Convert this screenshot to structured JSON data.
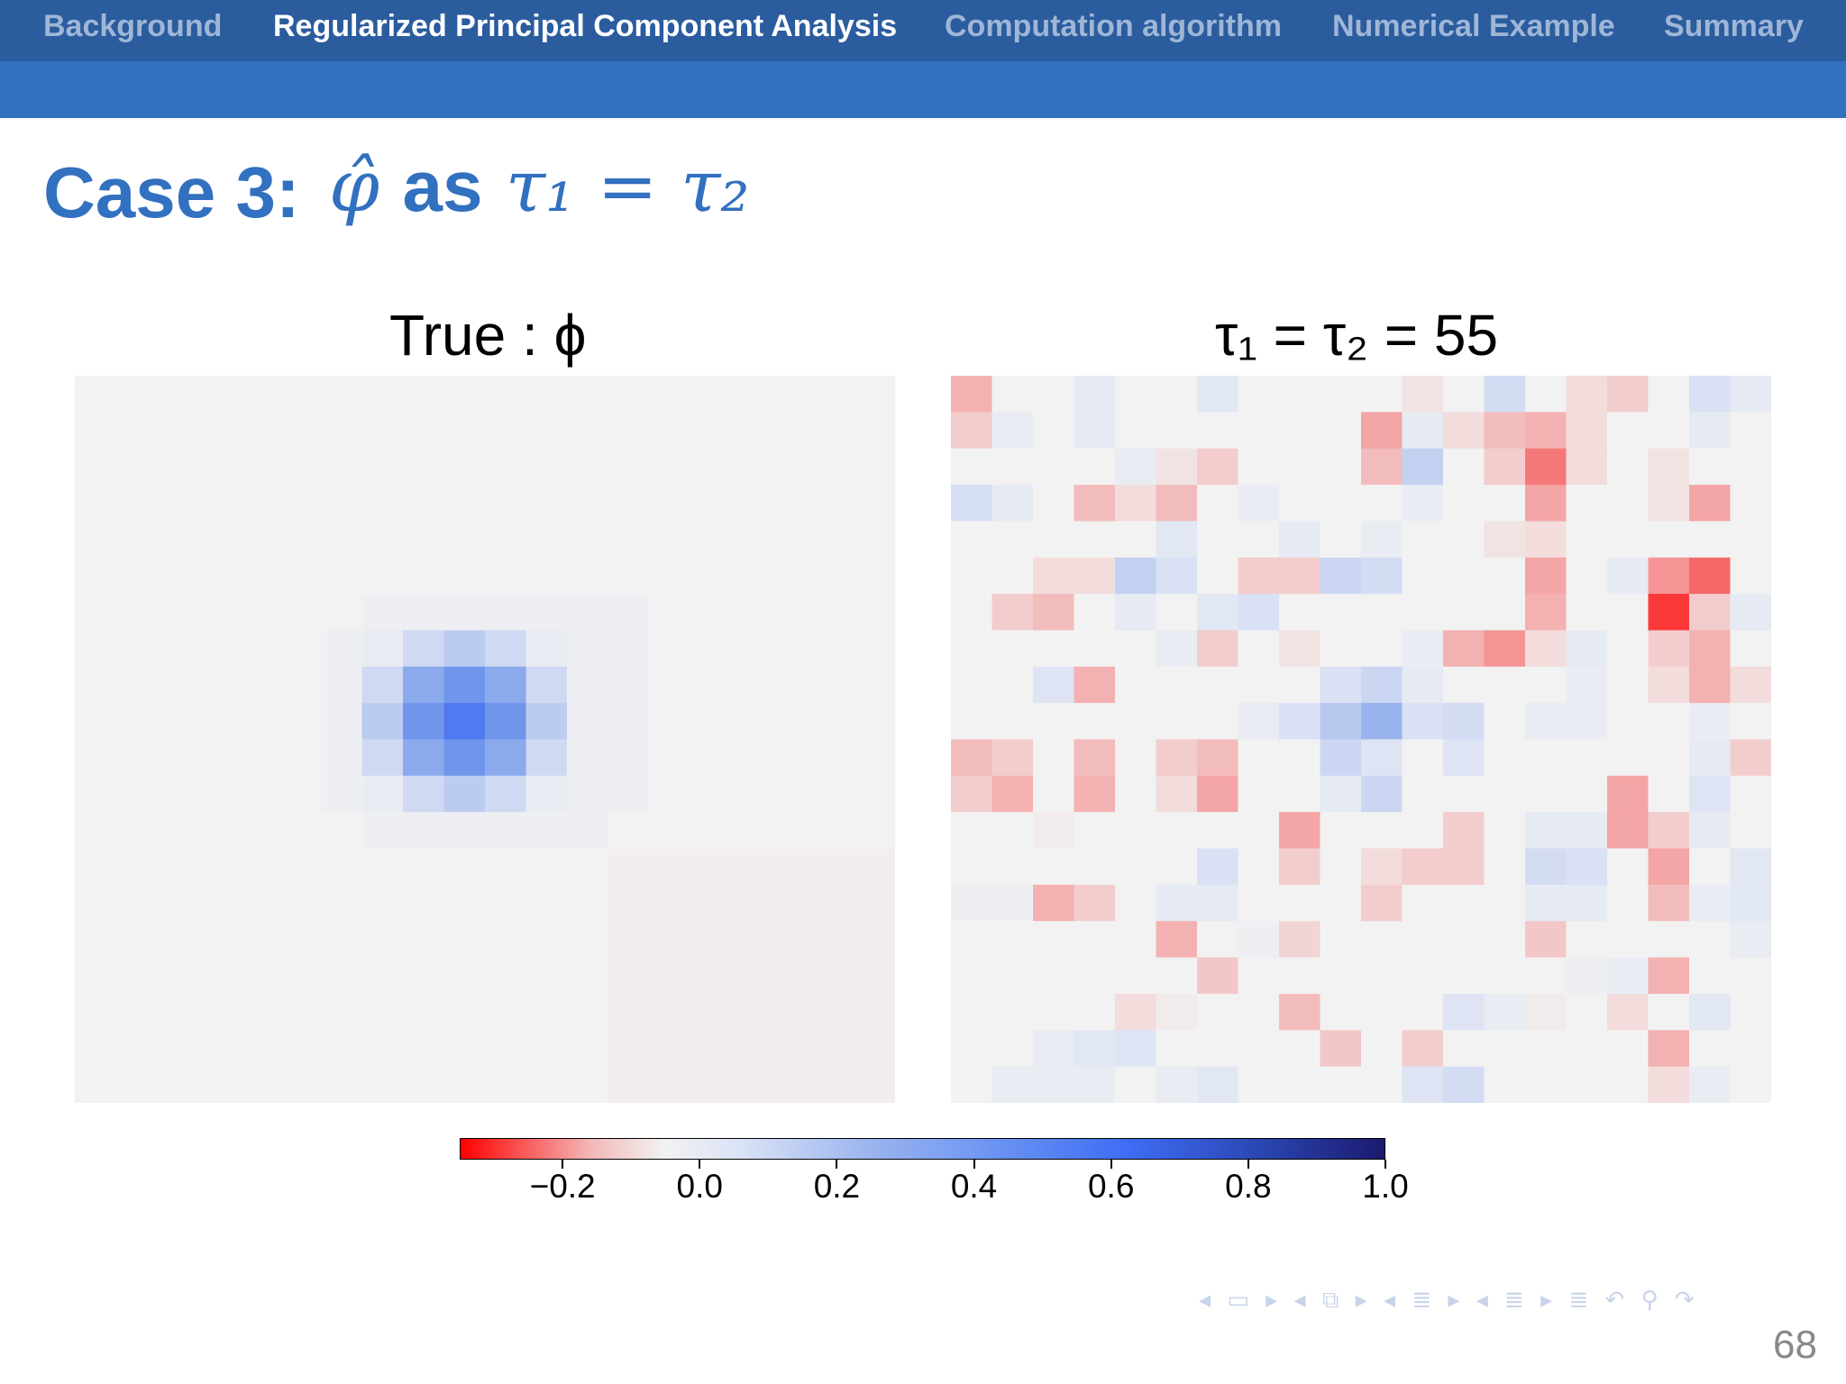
{
  "nav": {
    "items": [
      {
        "label": "Background",
        "active": false
      },
      {
        "label": "Regularized Principal Component Analysis",
        "active": true
      },
      {
        "label": "Computation algorithm",
        "active": false
      },
      {
        "label": "Numerical Example",
        "active": false
      },
      {
        "label": "Summary",
        "active": false
      }
    ]
  },
  "slide": {
    "title_prefix": "Case 3:",
    "title_math_phi": "φ̂",
    "title_math_as": "as",
    "title_math_expr": "τ₁ = τ₂",
    "page_number": "68"
  },
  "colors": {
    "nav_bg": "#2a5c9e",
    "subbar_bg": "#3270c0",
    "title": "#3270c0"
  },
  "chart_data": [
    {
      "type": "heatmap",
      "title": "True : ϕ",
      "rows": 20,
      "cols": 20,
      "values": [
        [
          0,
          0,
          0,
          0,
          0,
          0,
          0,
          0,
          0,
          0,
          0,
          0,
          0,
          0,
          0,
          0,
          0,
          0,
          0,
          0
        ],
        [
          0,
          0,
          0,
          0,
          0,
          0,
          0,
          0,
          0,
          0,
          0,
          0,
          0,
          0,
          0,
          0,
          0,
          0,
          0,
          0
        ],
        [
          0,
          0,
          0,
          0,
          0,
          0,
          0,
          0,
          0,
          0,
          0,
          0,
          0,
          0,
          0,
          0,
          0,
          0,
          0,
          0
        ],
        [
          0,
          0,
          0,
          0,
          0,
          0,
          0,
          0,
          0,
          0,
          0,
          0,
          0,
          0,
          0,
          0,
          0,
          0,
          0,
          0
        ],
        [
          0,
          0,
          0,
          0,
          0,
          0,
          0,
          0,
          0,
          0,
          0,
          0,
          0,
          0,
          0,
          0,
          0,
          0,
          0,
          0
        ],
        [
          0,
          0,
          0,
          0,
          0,
          0,
          0,
          0,
          0,
          0,
          0,
          0,
          0,
          0,
          0,
          0,
          0,
          0,
          0,
          0
        ],
        [
          0,
          0,
          0,
          0,
          0,
          0,
          0,
          0.01,
          0.01,
          0.01,
          0.01,
          0.01,
          0.01,
          0.01,
          0,
          0,
          0,
          0,
          0,
          0
        ],
        [
          0,
          0,
          0,
          0,
          0,
          0,
          0.01,
          0.02,
          0.09,
          0.14,
          0.09,
          0.02,
          0.01,
          0.01,
          0,
          0,
          0,
          0,
          0,
          0
        ],
        [
          0,
          0,
          0,
          0,
          0,
          0,
          0.01,
          0.09,
          0.3,
          0.4,
          0.3,
          0.09,
          0.01,
          0.01,
          0,
          0,
          0,
          0,
          0,
          0
        ],
        [
          0,
          0,
          0,
          0,
          0,
          0,
          0.01,
          0.14,
          0.4,
          0.55,
          0.4,
          0.14,
          0.01,
          0.01,
          0,
          0,
          0,
          0,
          0,
          0
        ],
        [
          0,
          0,
          0,
          0,
          0,
          0,
          0.01,
          0.09,
          0.3,
          0.4,
          0.3,
          0.09,
          0.01,
          0.01,
          0,
          0,
          0,
          0,
          0,
          0
        ],
        [
          0,
          0,
          0,
          0,
          0,
          0,
          0.01,
          0.02,
          0.09,
          0.14,
          0.09,
          0.02,
          0.01,
          0.01,
          0,
          0,
          0,
          0,
          0,
          0
        ],
        [
          0,
          0,
          0,
          0,
          0,
          0,
          0,
          0.01,
          0.01,
          0.01,
          0.01,
          0.01,
          0.01,
          0,
          0,
          0,
          0,
          0,
          0,
          0
        ],
        [
          0,
          0,
          0,
          0,
          0,
          0,
          0,
          0,
          0,
          0,
          0,
          0,
          0,
          -0.005,
          -0.005,
          -0.005,
          -0.005,
          -0.005,
          -0.005,
          -0.005
        ],
        [
          0,
          0,
          0,
          0,
          0,
          0,
          0,
          0,
          0,
          0,
          0,
          0,
          0,
          -0.005,
          -0.005,
          -0.005,
          -0.005,
          -0.005,
          -0.005,
          -0.005
        ],
        [
          0,
          0,
          0,
          0,
          0,
          0,
          0,
          0,
          0,
          0,
          0,
          0,
          0,
          -0.005,
          -0.005,
          -0.005,
          -0.005,
          -0.005,
          -0.005,
          -0.005
        ],
        [
          0,
          0,
          0,
          0,
          0,
          0,
          0,
          0,
          0,
          0,
          0,
          0,
          0,
          -0.005,
          -0.005,
          -0.005,
          -0.005,
          -0.005,
          -0.005,
          -0.005
        ],
        [
          0,
          0,
          0,
          0,
          0,
          0,
          0,
          0,
          0,
          0,
          0,
          0,
          0,
          -0.005,
          -0.005,
          -0.005,
          -0.005,
          -0.005,
          -0.005,
          -0.005
        ],
        [
          0,
          0,
          0,
          0,
          0,
          0,
          0,
          0,
          0,
          0,
          0,
          0,
          0,
          -0.005,
          -0.005,
          -0.005,
          -0.005,
          -0.005,
          -0.005,
          -0.005
        ],
        [
          0,
          0,
          0,
          0,
          0,
          0,
          0,
          0,
          0,
          0,
          0,
          0,
          0,
          -0.005,
          -0.005,
          -0.005,
          -0.005,
          -0.005,
          -0.005,
          -0.005
        ]
      ]
    },
    {
      "type": "heatmap",
      "title": "τ₁ = τ₂ = 55",
      "rows": 20,
      "cols": 20,
      "values": [
        [
          -0.1,
          0.0,
          0.0,
          0.03,
          0.0,
          0.0,
          0.04,
          0.0,
          0.0,
          0.0,
          0.0,
          -0.02,
          0.0,
          0.08,
          0.0,
          -0.03,
          -0.05,
          0.0,
          0.06,
          0.03
        ],
        [
          -0.05,
          0.02,
          0.0,
          0.03,
          0.0,
          0.0,
          0.0,
          0.0,
          0.0,
          0.0,
          -0.12,
          0.03,
          -0.03,
          -0.08,
          -0.1,
          -0.03,
          0.0,
          0.0,
          0.03,
          0.0
        ],
        [
          0.0,
          0.0,
          0.0,
          0.0,
          0.02,
          -0.02,
          -0.05,
          0.0,
          0.0,
          0.0,
          -0.08,
          0.12,
          0.0,
          -0.05,
          -0.2,
          -0.03,
          0.0,
          -0.02,
          0.0,
          0.0
        ],
        [
          0.07,
          0.03,
          0.0,
          -0.08,
          -0.03,
          -0.08,
          0.0,
          0.02,
          0.0,
          0.0,
          0.0,
          0.02,
          0.0,
          0.0,
          -0.12,
          0.0,
          0.0,
          -0.02,
          -0.12,
          0.0
        ],
        [
          0.0,
          0.0,
          0.0,
          0.0,
          0.0,
          0.04,
          0.0,
          0.0,
          0.03,
          0.0,
          0.02,
          0.0,
          0.0,
          -0.02,
          -0.03,
          0.0,
          0.0,
          0.0,
          0.0,
          0.0
        ],
        [
          0.0,
          0.0,
          -0.03,
          -0.03,
          0.12,
          0.06,
          0.0,
          -0.05,
          -0.05,
          0.1,
          0.08,
          0.0,
          0.0,
          0.0,
          -0.12,
          0.0,
          0.03,
          -0.15,
          -0.22,
          0.0
        ],
        [
          0.0,
          -0.05,
          -0.08,
          0.0,
          0.03,
          0.0,
          0.04,
          0.06,
          0.0,
          0.0,
          0.0,
          0.0,
          0.0,
          0.0,
          -0.1,
          0.0,
          0.0,
          -0.28,
          -0.05,
          0.03
        ],
        [
          0.0,
          0.0,
          0.0,
          0.0,
          0.0,
          0.02,
          -0.05,
          0.0,
          -0.02,
          0.0,
          0.0,
          0.02,
          -0.1,
          -0.15,
          -0.03,
          0.03,
          0.0,
          -0.05,
          -0.1,
          0.0
        ],
        [
          0.0,
          0.0,
          0.05,
          -0.1,
          0.0,
          0.0,
          0.0,
          0.0,
          0.0,
          0.06,
          0.1,
          0.03,
          0.0,
          0.0,
          0.0,
          0.02,
          0.0,
          -0.03,
          -0.1,
          -0.03
        ],
        [
          0.0,
          0.0,
          0.0,
          0.0,
          0.0,
          0.0,
          0.0,
          0.02,
          0.06,
          0.15,
          0.25,
          0.06,
          0.08,
          0.0,
          0.02,
          0.02,
          0.0,
          0.0,
          0.02,
          0.0
        ],
        [
          -0.08,
          -0.05,
          0.0,
          -0.08,
          0.0,
          -0.05,
          -0.08,
          0.0,
          0.0,
          0.1,
          0.05,
          0.0,
          0.05,
          0.0,
          0.0,
          0.0,
          0.0,
          0.0,
          0.03,
          -0.05
        ],
        [
          -0.05,
          -0.1,
          0.0,
          -0.1,
          0.0,
          -0.03,
          -0.12,
          0.0,
          0.0,
          0.03,
          0.1,
          0.0,
          0.0,
          0.0,
          0.0,
          0.0,
          -0.12,
          0.0,
          0.05,
          0.0
        ],
        [
          0.0,
          0.0,
          -0.01,
          0.0,
          0.0,
          0.0,
          0.0,
          0.0,
          -0.12,
          0.0,
          0.0,
          0.0,
          -0.05,
          0.0,
          0.03,
          0.03,
          -0.12,
          -0.05,
          0.03,
          0.0
        ],
        [
          0.0,
          0.0,
          0.0,
          0.0,
          0.0,
          0.0,
          0.06,
          0.0,
          -0.05,
          0.0,
          -0.03,
          -0.05,
          -0.05,
          0.0,
          0.08,
          0.06,
          0.0,
          -0.12,
          0.0,
          0.04
        ],
        [
          0.01,
          0.01,
          -0.1,
          -0.05,
          0.0,
          0.03,
          0.03,
          0.0,
          0.0,
          0.0,
          -0.05,
          0.0,
          0.0,
          0.0,
          0.03,
          0.03,
          0.0,
          -0.08,
          0.02,
          0.04
        ],
        [
          0.0,
          0.0,
          0.0,
          0.0,
          0.0,
          -0.1,
          0.0,
          0.01,
          -0.04,
          0.0,
          0.0,
          0.0,
          0.0,
          0.0,
          -0.06,
          0.0,
          0.0,
          0.0,
          0.0,
          0.02
        ],
        [
          0.0,
          0.0,
          0.0,
          0.0,
          0.0,
          0.0,
          -0.06,
          0.0,
          0.0,
          0.0,
          0.0,
          0.0,
          0.0,
          0.0,
          0.0,
          0.01,
          0.02,
          -0.1,
          0.0,
          0.0
        ],
        [
          0.0,
          0.0,
          0.0,
          0.0,
          -0.03,
          -0.01,
          0.0,
          0.0,
          -0.08,
          0.0,
          0.0,
          0.0,
          0.05,
          0.02,
          -0.01,
          0.0,
          -0.03,
          0.0,
          0.04,
          0.0
        ],
        [
          0.0,
          0.0,
          0.02,
          0.04,
          0.05,
          0.0,
          0.0,
          0.0,
          0.0,
          -0.06,
          0.0,
          -0.05,
          0.0,
          0.0,
          0.0,
          0.0,
          0.0,
          -0.1,
          0.0,
          0.0
        ],
        [
          0.0,
          0.02,
          0.02,
          0.02,
          0.0,
          0.02,
          0.04,
          0.0,
          0.0,
          0.0,
          0.0,
          0.05,
          0.08,
          0.0,
          0.0,
          0.0,
          0.0,
          -0.03,
          0.02,
          0.0
        ]
      ]
    },
    {
      "type": "colorbar",
      "range": [
        -0.35,
        1.0
      ],
      "ticks": [
        -0.2,
        0.0,
        0.2,
        0.4,
        0.6,
        0.8,
        1.0
      ],
      "tick_labels": [
        "−0.2",
        "0.0",
        "0.2",
        "0.4",
        "0.6",
        "0.8",
        "1.0"
      ]
    }
  ]
}
